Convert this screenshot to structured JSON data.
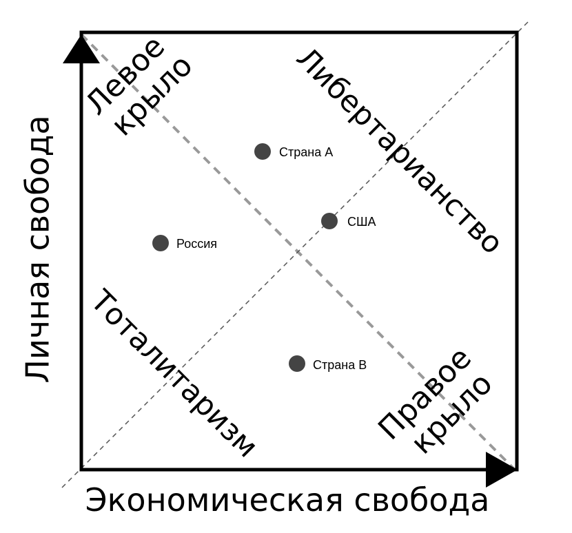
{
  "axes": {
    "x_title": "Экономическая свобода",
    "y_title": "Личная свобода"
  },
  "regions": {
    "left_wing": [
      "Левое",
      "крыло"
    ],
    "libertarianism": "Либертарианство",
    "totalitarianism": "Тоталитаризм",
    "right_wing": [
      "Правое",
      "крыло"
    ]
  },
  "points": [
    {
      "label": "Страна А"
    },
    {
      "label": "США"
    },
    {
      "label": "Россия"
    },
    {
      "label": "Страна В"
    }
  ],
  "colors": {
    "frame": "#000000",
    "point": "#444444",
    "diagonal_main": "#999999",
    "diagonal_secondary": "#555555"
  }
}
